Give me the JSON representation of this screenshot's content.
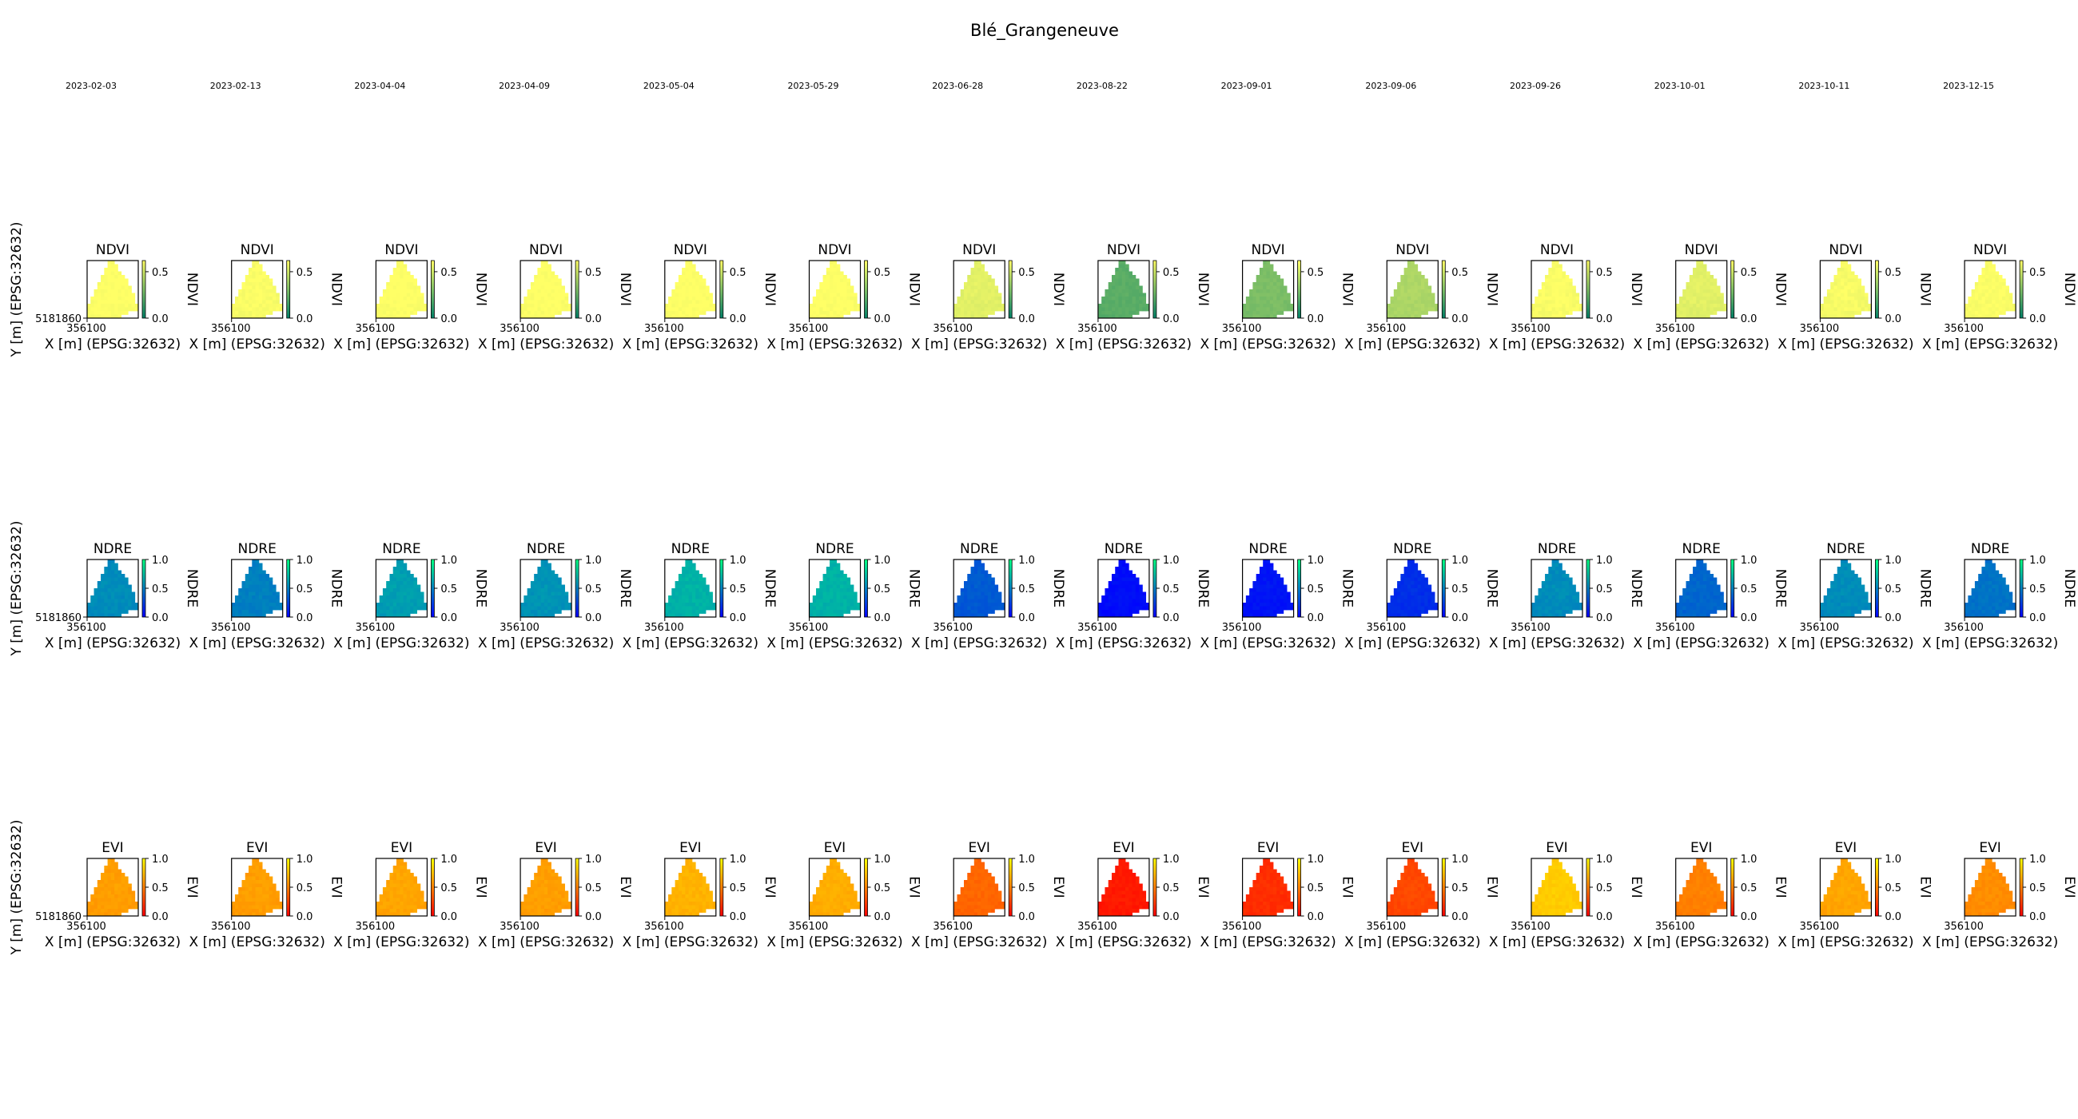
{
  "title": "Blé_Grangeneuve",
  "chart_data": {
    "type": "heatmap",
    "title": "Blé_Grangeneuve",
    "dates": [
      "2023-02-03",
      "2023-02-13",
      "2023-04-04",
      "2023-04-09",
      "2023-05-04",
      "2023-05-29",
      "2023-06-28",
      "2023-08-22",
      "2023-09-01",
      "2023-09-06",
      "2023-09-26",
      "2023-10-01",
      "2023-10-11",
      "2023-12-15"
    ],
    "xlabel": "X [m] (EPSG:32632)",
    "ylabel": "Y [m] (EPSG:32632)",
    "x_tick": "356100",
    "y_tick": "5181860",
    "rows": [
      {
        "index": "NDVI",
        "colormap": "summer",
        "cbar_label": "NDVI",
        "cbar_ticks": [
          "0.0",
          "0.5"
        ],
        "cbar_tick_values": [
          0.0,
          0.5
        ],
        "vmin": 0.0,
        "vmax": 0.62,
        "mean_values": [
          0.62,
          0.61,
          0.62,
          0.62,
          0.62,
          0.62,
          0.55,
          0.22,
          0.3,
          0.42,
          0.61,
          0.55,
          0.6,
          0.61
        ]
      },
      {
        "index": "NDRE",
        "colormap": "winter",
        "cbar_label": "NDRE",
        "cbar_ticks": [
          "0.0",
          "0.5",
          "1.0"
        ],
        "cbar_tick_values": [
          0.0,
          0.5,
          1.0
        ],
        "vmin": 0.0,
        "vmax": 1.0,
        "mean_values": [
          0.55,
          0.5,
          0.62,
          0.58,
          0.7,
          0.7,
          0.35,
          0.05,
          0.08,
          0.18,
          0.55,
          0.4,
          0.55,
          0.45
        ]
      },
      {
        "index": "EVI",
        "colormap": "autumn",
        "cbar_label": "EVI",
        "cbar_ticks": [
          "0.0",
          "0.5",
          "1.0"
        ],
        "cbar_tick_values": [
          0.0,
          0.5,
          1.0
        ],
        "vmin": 0.0,
        "vmax": 1.0,
        "mean_values": [
          0.62,
          0.62,
          0.65,
          0.62,
          0.7,
          0.68,
          0.4,
          0.1,
          0.18,
          0.28,
          0.8,
          0.5,
          0.65,
          0.55
        ]
      }
    ]
  }
}
